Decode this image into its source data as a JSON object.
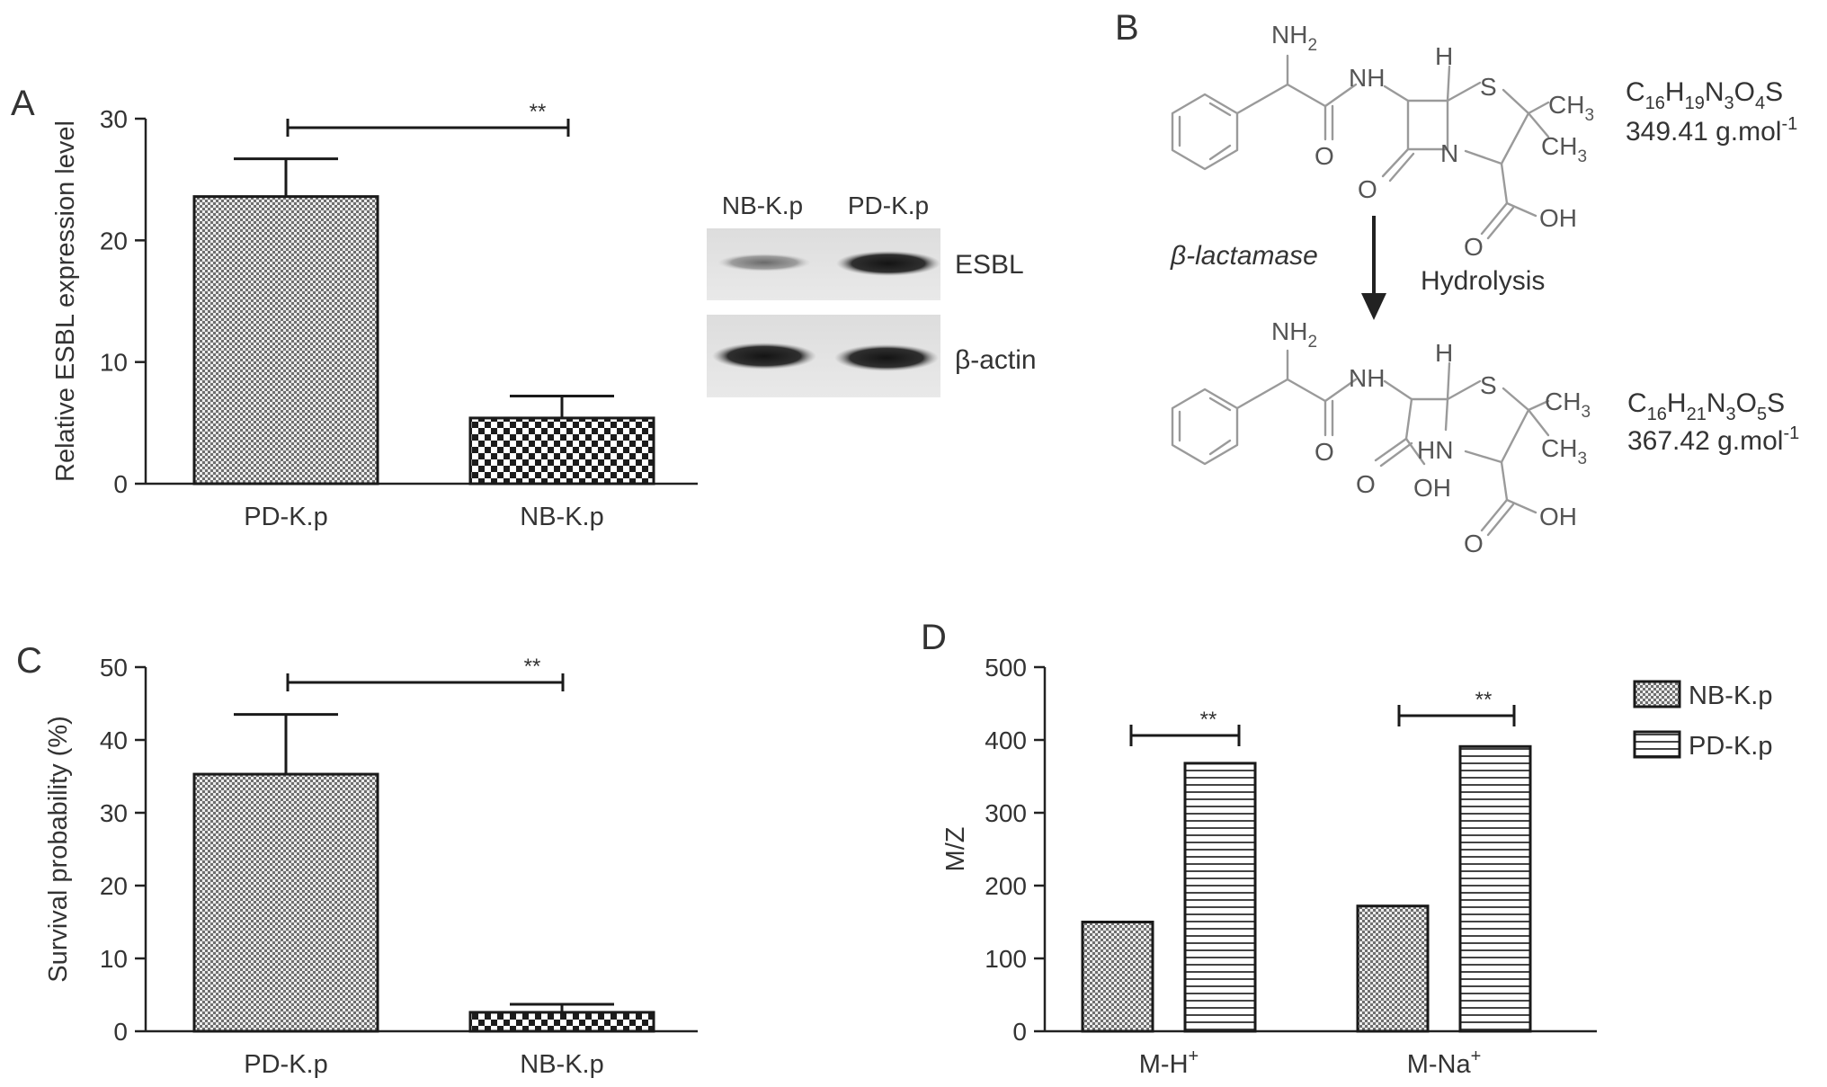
{
  "panels": {
    "a": {
      "letter": "A",
      "western_blot": {
        "lanes": [
          "NB-K.p",
          "PD-K.p"
        ],
        "bands": [
          "ESBL",
          "β-actin"
        ]
      }
    },
    "b": {
      "letter": "B",
      "enzyme": "β-lactamase",
      "process": "Hydrolysis",
      "reactant": {
        "formula_parts": [
          [
            "C",
            false
          ],
          [
            "16",
            true
          ],
          [
            "H",
            false
          ],
          [
            "19",
            true
          ],
          [
            "N",
            false
          ],
          [
            "3",
            true
          ],
          [
            "O",
            false
          ],
          [
            "4",
            true
          ],
          [
            "S",
            false
          ]
        ],
        "mass": "349.41 g.mol",
        "mass_sup": "-1"
      },
      "product": {
        "formula_parts": [
          [
            "C",
            false
          ],
          [
            "16",
            true
          ],
          [
            "H",
            false
          ],
          [
            "21",
            true
          ],
          [
            "N",
            false
          ],
          [
            "3",
            true
          ],
          [
            "O",
            false
          ],
          [
            "5",
            true
          ],
          [
            "S",
            false
          ]
        ],
        "mass": "367.42 g.mol",
        "mass_sup": "-1"
      },
      "atoms": {
        "nh2": "NH",
        "nh2_sub": "2",
        "nh": "NH",
        "hn": "HN",
        "h": "H",
        "s": "S",
        "n": "N",
        "o": "O",
        "oh": "OH",
        "ch3": "CH",
        "ch3_sub": "3"
      }
    },
    "c": {
      "letter": "C"
    },
    "d": {
      "letter": "D"
    }
  },
  "chart_data": [
    {
      "panel": "A",
      "type": "bar",
      "categories": [
        "PD-K.p",
        "NB-K.p"
      ],
      "values": [
        23.6,
        5.4
      ],
      "errors": [
        3.1,
        1.8
      ],
      "ylabel": "Relative ESBL expression level",
      "ylim": [
        0,
        30
      ],
      "yticks": [
        0,
        10,
        20,
        30
      ],
      "significance": "**"
    },
    {
      "panel": "C",
      "type": "bar",
      "categories": [
        "PD-K.p",
        "NB-K.p"
      ],
      "values": [
        35.3,
        2.6
      ],
      "errors": [
        8.2,
        1.1
      ],
      "ylabel": "Survival probability (%)",
      "ylim": [
        0,
        50
      ],
      "yticks": [
        0,
        10,
        20,
        30,
        40,
        50
      ],
      "significance": "**"
    },
    {
      "panel": "D",
      "type": "bar",
      "categories": [
        "M-H",
        "M-Na"
      ],
      "category_sup": [
        "+",
        "+"
      ],
      "series": [
        {
          "name": "NB-K.p",
          "values": [
            150,
            172
          ]
        },
        {
          "name": "PD-K.p",
          "values": [
            368,
            391
          ]
        }
      ],
      "ylabel": "M/Z",
      "ylim": [
        0,
        500
      ],
      "yticks": [
        0,
        100,
        200,
        300,
        400,
        500
      ],
      "significance": [
        "**",
        "**"
      ],
      "legend_position": "top-right"
    }
  ]
}
